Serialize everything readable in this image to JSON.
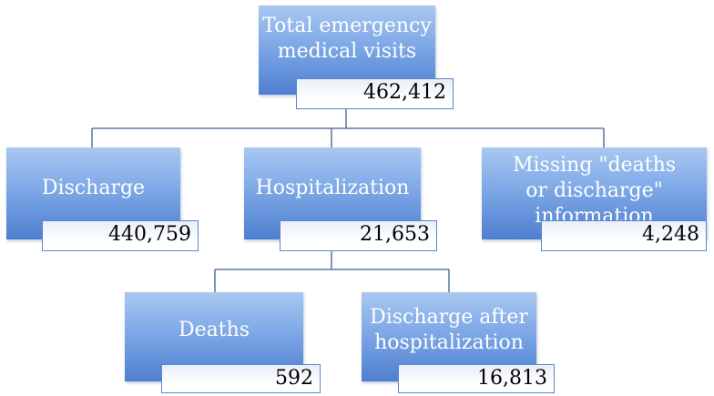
{
  "nodes": {
    "total": {
      "label": "Total emergency medical visits",
      "value": "462,412"
    },
    "discharge": {
      "label": "Discharge",
      "value": "440,759"
    },
    "hospitalization": {
      "label": "Hospitalization",
      "value": "21,653"
    },
    "missing": {
      "label": "Missing \"deaths or discharge\" information",
      "value": "4,248"
    },
    "deaths": {
      "label": "Deaths",
      "value": "592"
    },
    "discharge_after": {
      "label": "Discharge after hospitalization",
      "value": "16,813"
    }
  },
  "colors": {
    "node_top": "#a9c8f1",
    "node_bottom": "#4e7fd0",
    "value_border": "#5b87c9",
    "connector": "#3f5f8f"
  }
}
